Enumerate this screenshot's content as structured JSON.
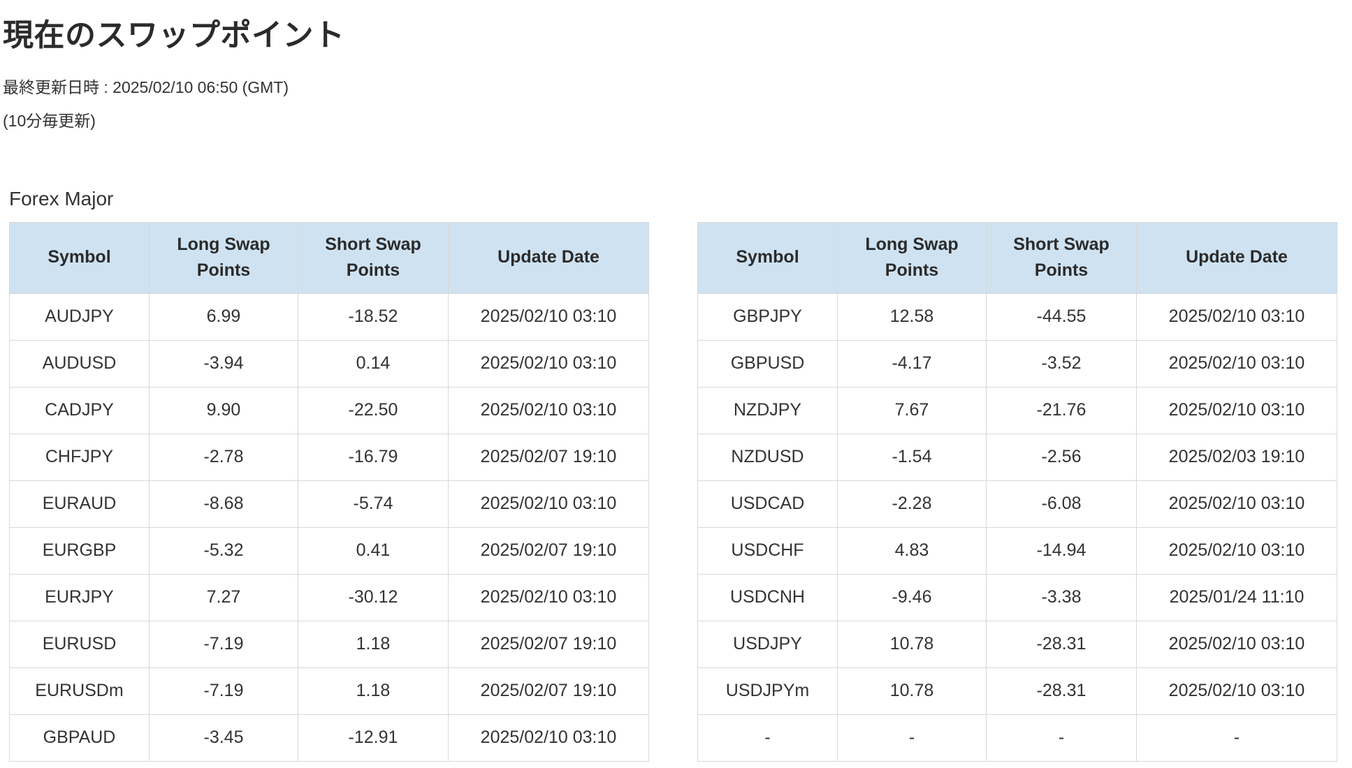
{
  "page": {
    "title": "現在のスワップポイント",
    "last_updated": "最終更新日時 : 2025/02/10 06:50 (GMT)",
    "update_note": "(10分毎更新)",
    "section_title": "Forex Major"
  },
  "colors": {
    "positive_value": "#2e78ad",
    "negative_value": "#a94442",
    "header_background": "#cfe2f1",
    "table_border": "#d8d8d8"
  },
  "table_headers": [
    "Symbol",
    "Long Swap Points",
    "Short Swap Points",
    "Update Date"
  ],
  "tables": {
    "left": {
      "rows": [
        {
          "symbol": "AUDJPY",
          "long": "6.99",
          "short": "-18.52",
          "date": "2025/02/10 03:10"
        },
        {
          "symbol": "AUDUSD",
          "long": "-3.94",
          "short": "0.14",
          "date": "2025/02/10 03:10"
        },
        {
          "symbol": "CADJPY",
          "long": "9.90",
          "short": "-22.50",
          "date": "2025/02/10 03:10"
        },
        {
          "symbol": "CHFJPY",
          "long": "-2.78",
          "short": "-16.79",
          "date": "2025/02/07 19:10"
        },
        {
          "symbol": "EURAUD",
          "long": "-8.68",
          "short": "-5.74",
          "date": "2025/02/10 03:10"
        },
        {
          "symbol": "EURGBP",
          "long": "-5.32",
          "short": "0.41",
          "date": "2025/02/07 19:10"
        },
        {
          "symbol": "EURJPY",
          "long": "7.27",
          "short": "-30.12",
          "date": "2025/02/10 03:10"
        },
        {
          "symbol": "EURUSD",
          "long": "-7.19",
          "short": "1.18",
          "date": "2025/02/07 19:10"
        },
        {
          "symbol": "EURUSDm",
          "long": "-7.19",
          "short": "1.18",
          "date": "2025/02/07 19:10"
        },
        {
          "symbol": "GBPAUD",
          "long": "-3.45",
          "short": "-12.91",
          "date": "2025/02/10 03:10"
        }
      ]
    },
    "right": {
      "rows": [
        {
          "symbol": "GBPJPY",
          "long": "12.58",
          "short": "-44.55",
          "date": "2025/02/10 03:10"
        },
        {
          "symbol": "GBPUSD",
          "long": "-4.17",
          "short": "-3.52",
          "date": "2025/02/10 03:10"
        },
        {
          "symbol": "NZDJPY",
          "long": "7.67",
          "short": "-21.76",
          "date": "2025/02/10 03:10"
        },
        {
          "symbol": "NZDUSD",
          "long": "-1.54",
          "short": "-2.56",
          "date": "2025/02/03 19:10"
        },
        {
          "symbol": "USDCAD",
          "long": "-2.28",
          "short": "-6.08",
          "date": "2025/02/10 03:10"
        },
        {
          "symbol": "USDCHF",
          "long": "4.83",
          "short": "-14.94",
          "date": "2025/02/10 03:10"
        },
        {
          "symbol": "USDCNH",
          "long": "-9.46",
          "short": "-3.38",
          "date": "2025/01/24 11:10"
        },
        {
          "symbol": "USDJPY",
          "long": "10.78",
          "short": "-28.31",
          "date": "2025/02/10 03:10"
        },
        {
          "symbol": "USDJPYm",
          "long": "10.78",
          "short": "-28.31",
          "date": "2025/02/10 03:10"
        },
        {
          "symbol": "-",
          "long": "-",
          "short": "-",
          "date": "-"
        }
      ]
    }
  }
}
